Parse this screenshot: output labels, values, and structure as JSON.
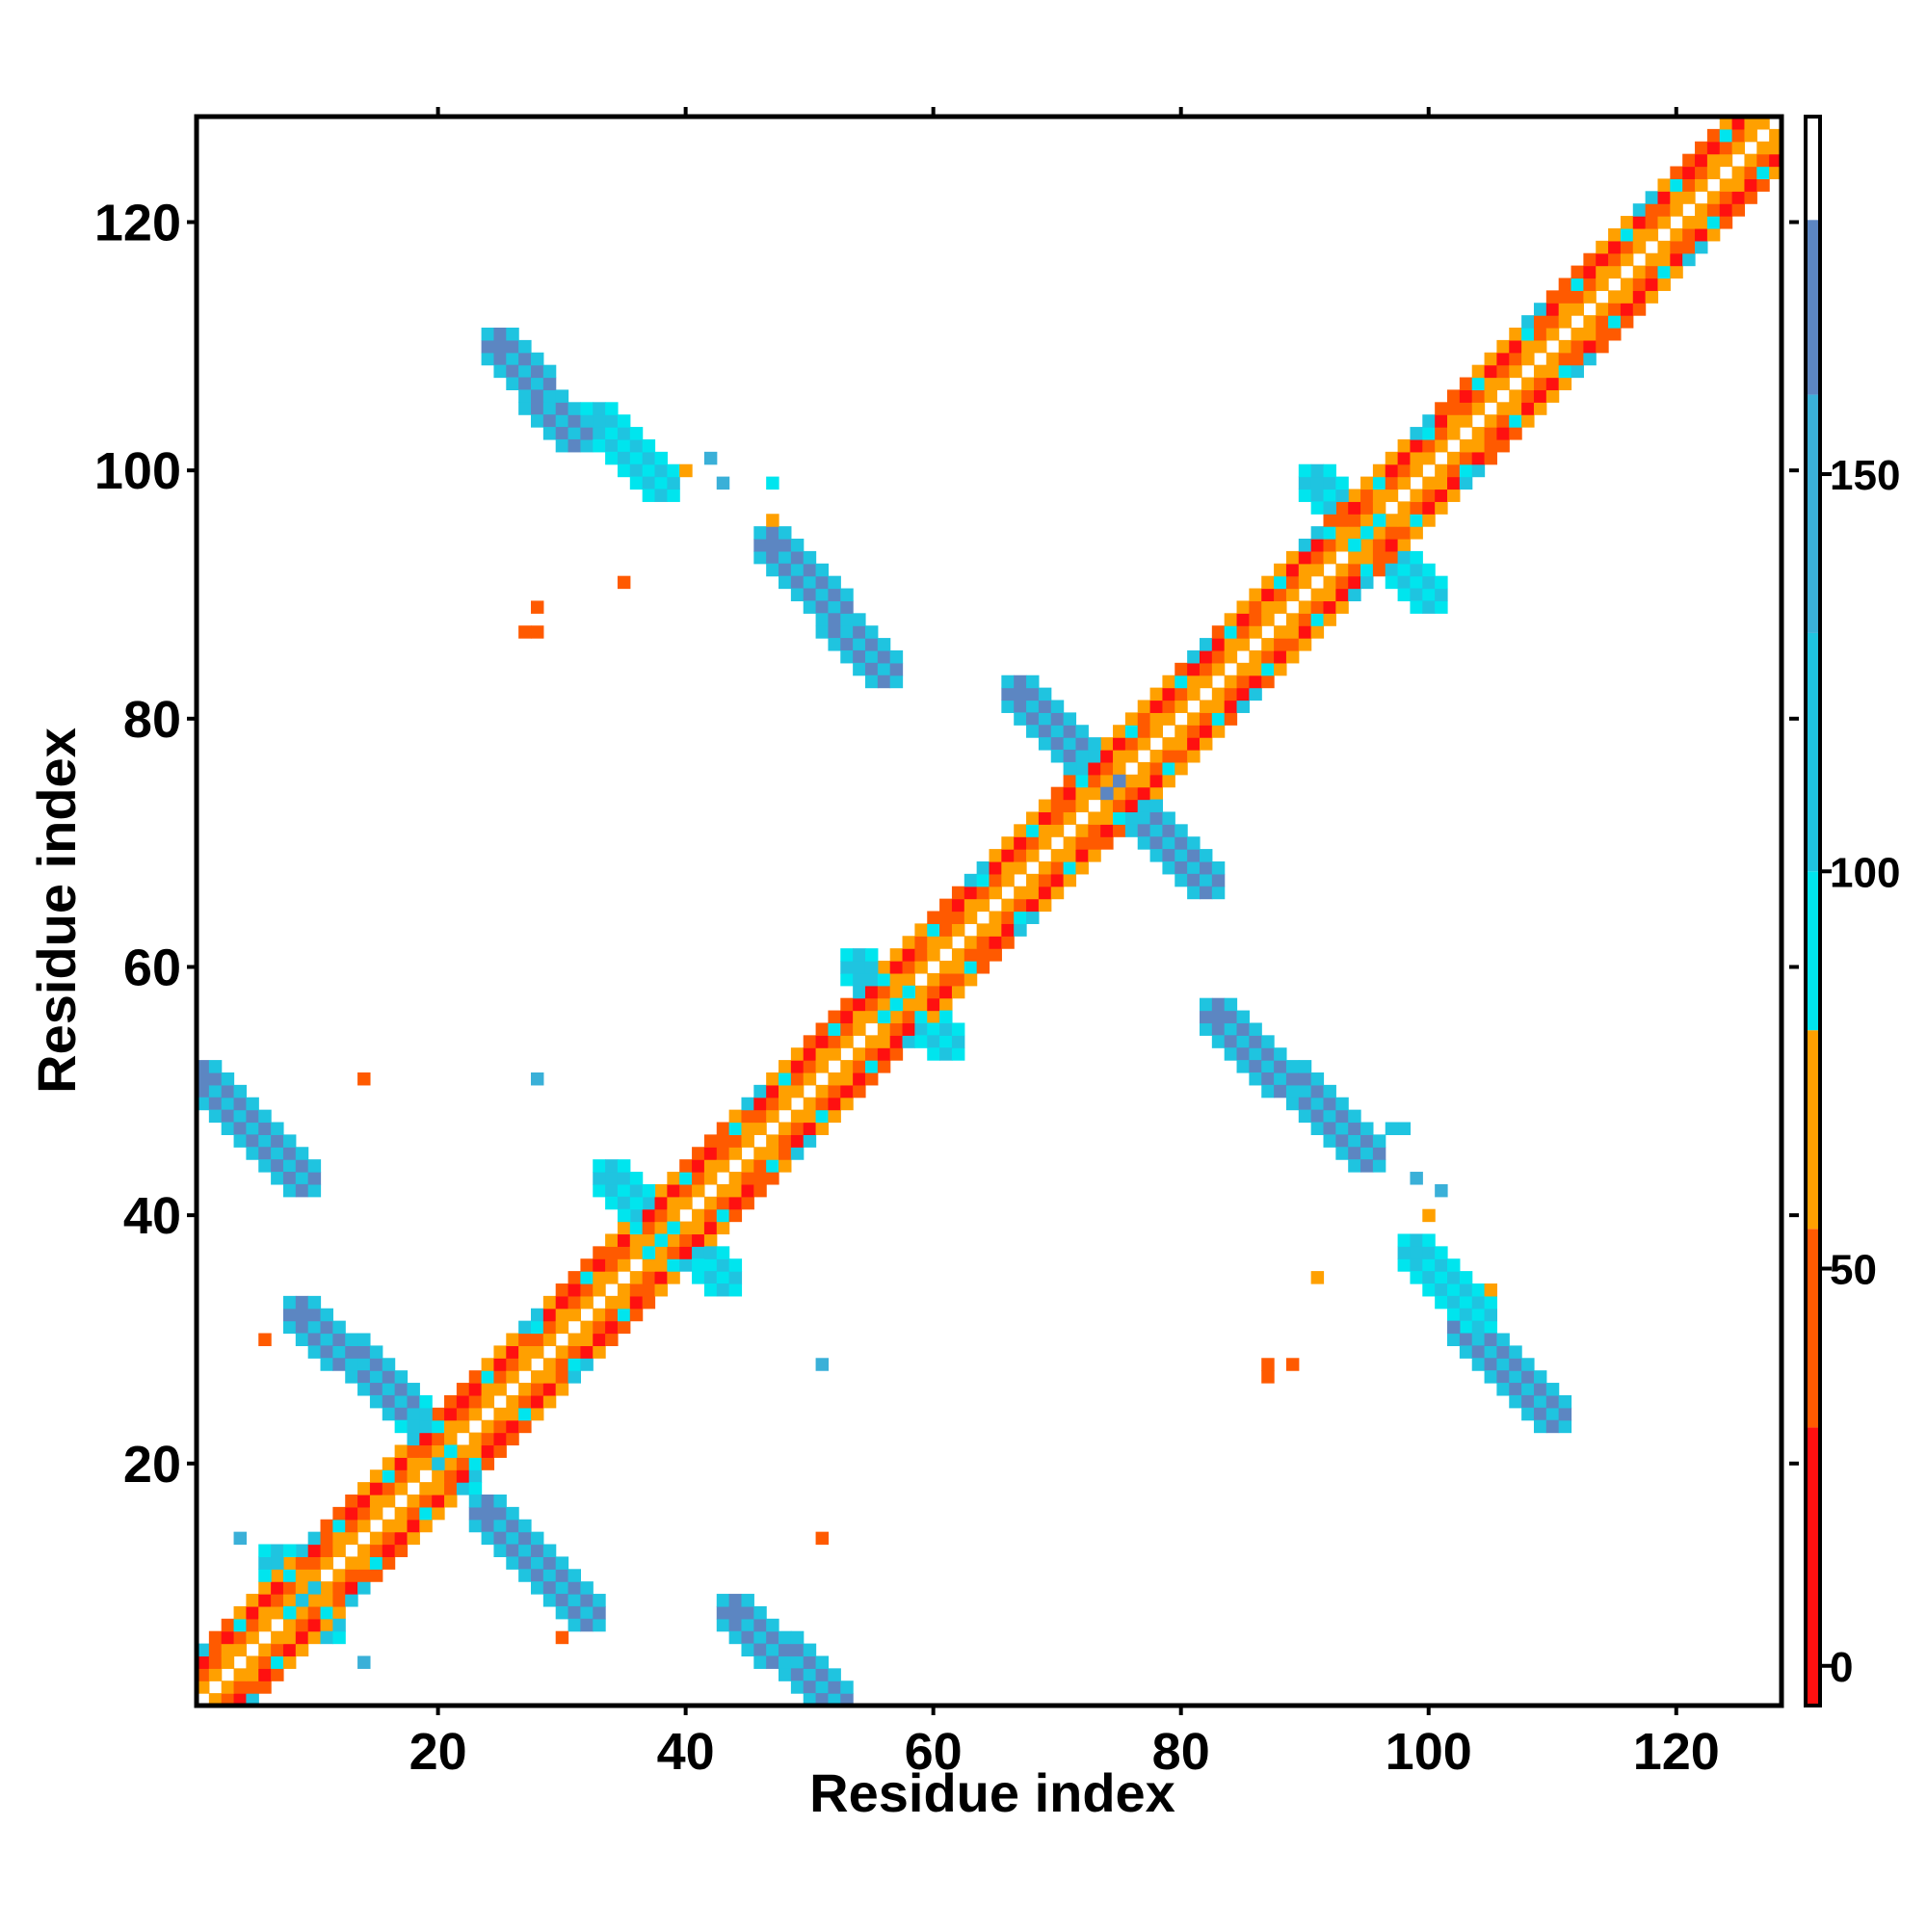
{
  "chart_data": {
    "type": "heatmap",
    "title": "",
    "xlabel": "Residue index",
    "ylabel": "Residue index",
    "xlim": [
      1,
      128
    ],
    "ylim": [
      1,
      128
    ],
    "xticks": [
      20,
      40,
      60,
      80,
      100,
      120
    ],
    "yticks": [
      20,
      40,
      60,
      80,
      100,
      120
    ],
    "grid": false,
    "colorbar": {
      "ticks": [
        0,
        50,
        100,
        150
      ],
      "range": [
        -5,
        195
      ],
      "bands": [
        {
          "from": -5,
          "to": 30,
          "color": "#ff1010"
        },
        {
          "from": 30,
          "to": 55,
          "color": "#ff5a00"
        },
        {
          "from": 55,
          "to": 80,
          "color": "#ffa000"
        },
        {
          "from": 80,
          "to": 100,
          "color": "#00e5ee"
        },
        {
          "from": 100,
          "to": 130,
          "color": "#1fc4e0"
        },
        {
          "from": 130,
          "to": 160,
          "color": "#3ab0d8"
        },
        {
          "from": 160,
          "to": 182,
          "color": "#5c86c2"
        },
        {
          "from": 182,
          "to": 195,
          "color": "#ffffff"
        }
      ]
    },
    "diagonal_band": {
      "min_offset": 2,
      "max_offset": 4,
      "segments": [
        {
          "start": 1,
          "end": 128
        }
      ]
    },
    "contact_segments": [
      {
        "x1": 1,
        "y1": 51,
        "x2": 9,
        "y2": 43,
        "value": 160
      },
      {
        "x1": 9,
        "y1": 32,
        "x2": 17,
        "y2": 25,
        "value": 165
      },
      {
        "x1": 17,
        "y1": 25,
        "x2": 22,
        "y2": 19,
        "value": 125
      },
      {
        "x1": 24,
        "y1": 16,
        "x2": 32,
        "y2": 8,
        "value": 165
      },
      {
        "x1": 44,
        "y1": 8,
        "x2": 52,
        "y2": 1,
        "value": 165
      },
      {
        "x1": 7,
        "y1": 12,
        "x2": 11,
        "y2": 7,
        "value": 120
      },
      {
        "x1": 25,
        "y1": 110,
        "x2": 31,
        "y2": 103,
        "value": 165
      },
      {
        "x1": 33,
        "y1": 104,
        "x2": 38,
        "y2": 99,
        "value": 120
      },
      {
        "x1": 34,
        "y1": 43,
        "x2": 38,
        "y2": 38,
        "value": 110
      },
      {
        "x1": 38,
        "y1": 39,
        "x2": 43,
        "y2": 35,
        "value": 120
      },
      {
        "x1": 47,
        "y1": 94,
        "x2": 56,
        "y2": 84,
        "value": 165
      },
      {
        "x1": 54,
        "y1": 60,
        "x2": 61,
        "y2": 54,
        "value": 105
      },
      {
        "x1": 67,
        "y1": 82,
        "x2": 74,
        "y2": 75,
        "value": 160
      },
      {
        "x1": 75,
        "y1": 74,
        "x2": 82,
        "y2": 67,
        "value": 160
      },
      {
        "x1": 83,
        "y1": 56,
        "x2": 95,
        "y2": 45,
        "value": 165
      },
      {
        "x1": 91,
        "y1": 99,
        "x2": 95,
        "y2": 95,
        "value": 110
      },
      {
        "x1": 95,
        "y1": 95,
        "x2": 100,
        "y2": 90,
        "value": 120
      },
      {
        "x1": 99,
        "y1": 37,
        "x2": 104,
        "y2": 32,
        "value": 120
      },
      {
        "x1": 103,
        "y1": 31,
        "x2": 110,
        "y2": 24,
        "value": 165
      }
    ],
    "scattered_points": [
      {
        "x": 4,
        "y": 14,
        "value": 150
      },
      {
        "x": 14,
        "y": 4,
        "value": 150
      },
      {
        "x": 14,
        "y": 51,
        "value": 45
      },
      {
        "x": 28,
        "y": 51,
        "value": 140
      },
      {
        "x": 6,
        "y": 30,
        "value": 45
      },
      {
        "x": 30,
        "y": 6,
        "value": 45
      },
      {
        "x": 51,
        "y": 28,
        "value": 140
      },
      {
        "x": 51,
        "y": 14,
        "value": 45
      },
      {
        "x": 27,
        "y": 87,
        "value": 45
      },
      {
        "x": 28,
        "y": 87,
        "value": 45
      },
      {
        "x": 28,
        "y": 89,
        "value": 45
      },
      {
        "x": 35,
        "y": 91,
        "value": 45
      },
      {
        "x": 40,
        "y": 100,
        "value": 70
      },
      {
        "x": 42,
        "y": 101,
        "value": 130
      },
      {
        "x": 43,
        "y": 99,
        "value": 150
      },
      {
        "x": 47,
        "y": 99,
        "value": 90
      },
      {
        "x": 47,
        "y": 96,
        "value": 70
      },
      {
        "x": 87,
        "y": 27,
        "value": 45
      },
      {
        "x": 87,
        "y": 28,
        "value": 45
      },
      {
        "x": 89,
        "y": 28,
        "value": 45
      },
      {
        "x": 91,
        "y": 35,
        "value": 70
      },
      {
        "x": 99,
        "y": 43,
        "value": 130
      },
      {
        "x": 100,
        "y": 40,
        "value": 70
      },
      {
        "x": 101,
        "y": 42,
        "value": 130
      },
      {
        "x": 98,
        "y": 47,
        "value": 110
      },
      {
        "x": 97,
        "y": 47,
        "value": 110
      },
      {
        "x": 105,
        "y": 34,
        "value": 70
      }
    ]
  }
}
